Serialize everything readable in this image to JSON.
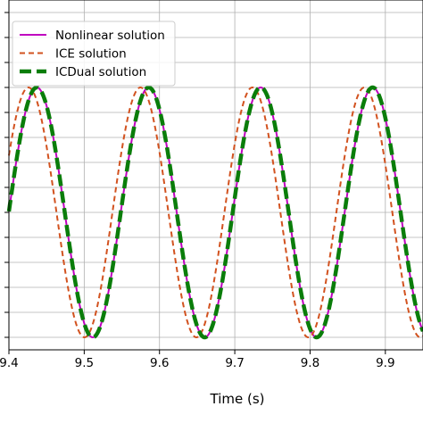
{
  "chart_data": {
    "type": "line",
    "xlabel": "Time (s)",
    "ylabel": "",
    "x_ticks": [
      "9.4",
      "9.5",
      "9.6",
      "9.7",
      "9.8",
      "9.9"
    ],
    "xlim": [
      9.4,
      9.95
    ],
    "ylim": [
      -1.1,
      1.7
    ],
    "grid": true,
    "legend_position": "top-left",
    "series": [
      {
        "name": "Nonlinear solution",
        "color": "#bf00bf",
        "style": "solid",
        "period": 0.1487,
        "peak_time": 9.437,
        "amplitude": 1.0
      },
      {
        "name": "ICE solution",
        "color": "#d2521f",
        "style": "dashed",
        "period": 0.1487,
        "peak_time": 9.426,
        "amplitude": 1.0
      },
      {
        "name": "ICDual solution",
        "color": "#0a7d0a",
        "style": "thick-dashed",
        "period": 0.1487,
        "peak_time": 9.437,
        "amplitude": 1.0
      }
    ]
  }
}
